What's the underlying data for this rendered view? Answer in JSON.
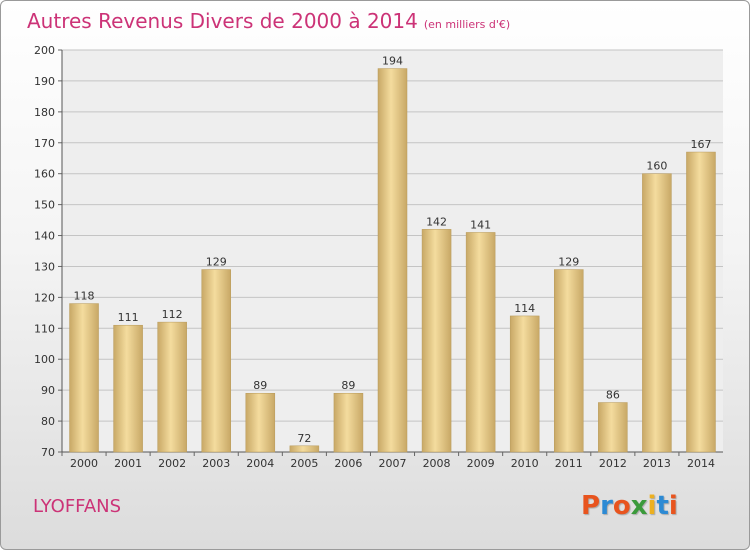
{
  "title": "Autres Revenus Divers de 2000 à 2014",
  "unit": "(en milliers d'€)",
  "commune": "LYOFFANS",
  "logo": {
    "text": "Proxiti",
    "colors": [
      "#e8541e",
      "#2c8ad4",
      "#e8541e",
      "#3a9a3a",
      "#ecb020",
      "#2c8ad4",
      "#e8541e"
    ]
  },
  "colors": {
    "accent": "#cc3377",
    "bar_light": "#f4dc9e",
    "bar_dark": "#c8a866"
  },
  "chart_data": {
    "type": "bar",
    "title": "Autres Revenus Divers de 2000 à 2014",
    "categories": [
      "2000",
      "2001",
      "2002",
      "2003",
      "2004",
      "2005",
      "2006",
      "2007",
      "2008",
      "2009",
      "2010",
      "2011",
      "2012",
      "2013",
      "2014"
    ],
    "values": [
      118,
      111,
      112,
      129,
      89,
      72,
      89,
      194,
      142,
      141,
      114,
      129,
      86,
      160,
      167
    ],
    "ylim": [
      70,
      200
    ],
    "yticks": [
      70,
      80,
      90,
      100,
      110,
      120,
      130,
      140,
      150,
      160,
      170,
      180,
      190,
      200
    ],
    "grid": true,
    "xlabel": "",
    "ylabel": ""
  }
}
